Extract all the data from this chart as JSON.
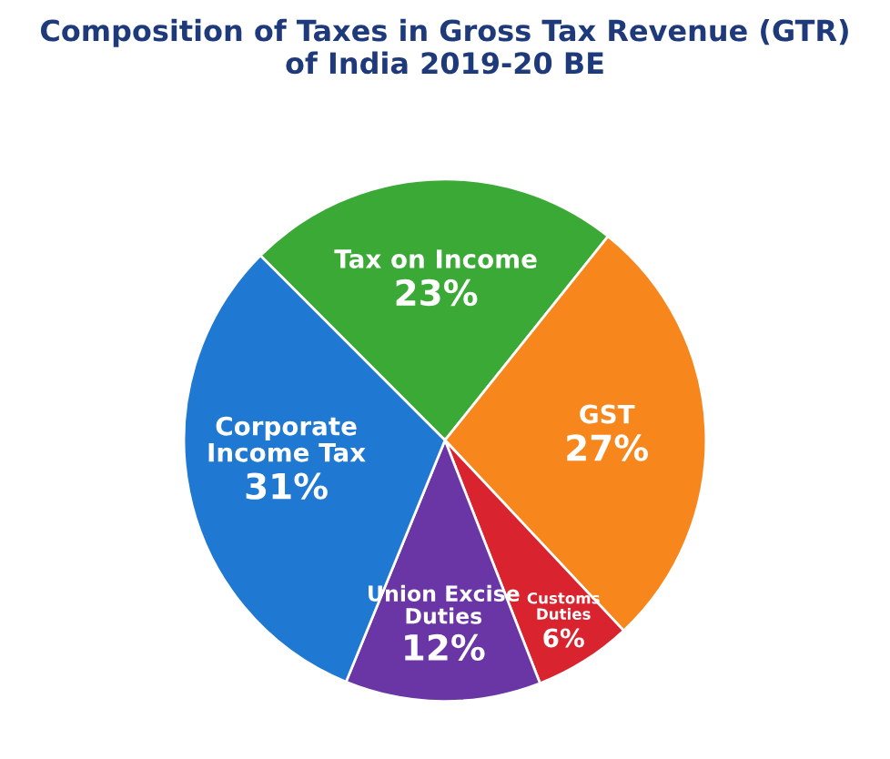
{
  "chart_data": {
    "type": "pie",
    "title": "Composition of Taxes in Gross Tax Revenue (GTR)\nof India 2019-20 BE",
    "categories": [
      "Tax on Income",
      "GST",
      "Customs\nDuties",
      "Union Excise\nDuties",
      "Corporate\nIncome Tax"
    ],
    "values": [
      23,
      27,
      6,
      12,
      31
    ],
    "value_labels": [
      "23%",
      "27%",
      "6%",
      "12%",
      "31%"
    ],
    "colors": [
      "#3aa935",
      "#f7861c",
      "#d9232e",
      "#6a36a6",
      "#1f78d1"
    ],
    "legend": false
  }
}
